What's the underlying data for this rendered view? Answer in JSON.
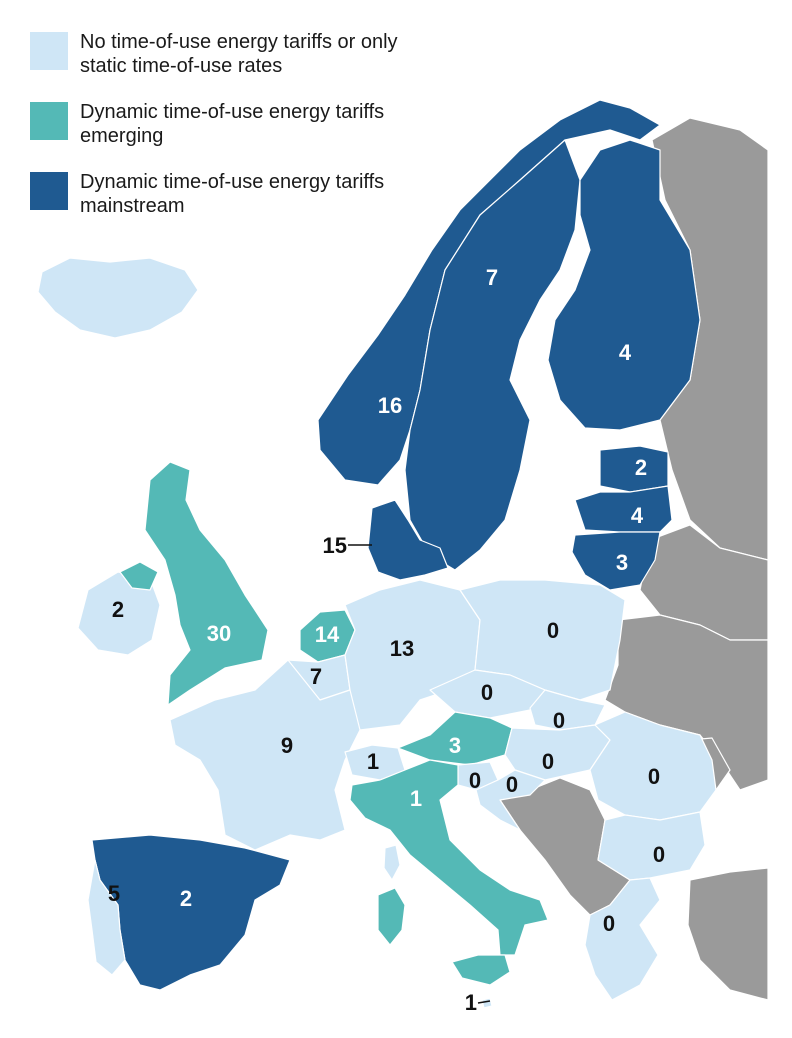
{
  "colors": {
    "none": "#cfe6f6",
    "emerging": "#54b9b6",
    "mainstream": "#1f5a91",
    "nodata": "#9a9a9a",
    "sea": "#ffffff",
    "border": "#ffffff"
  },
  "legend": [
    {
      "category": "none",
      "label": "No time-of-use energy tariffs or only static time-of-use rates"
    },
    {
      "category": "emerging",
      "label": "Dynamic time-of-use energy tariffs emerging"
    },
    {
      "category": "mainstream",
      "label": "Dynamic time-of-use energy tariffs mainstream"
    }
  ],
  "regions": [
    {
      "id": "iceland",
      "category": "none"
    },
    {
      "id": "norway",
      "category": "mainstream",
      "value": "16"
    },
    {
      "id": "sweden",
      "category": "mainstream",
      "value": "7"
    },
    {
      "id": "finland",
      "category": "mainstream",
      "value": "4"
    },
    {
      "id": "estonia",
      "category": "mainstream",
      "value": "2"
    },
    {
      "id": "latvia",
      "category": "mainstream",
      "value": "4"
    },
    {
      "id": "lithuania",
      "category": "mainstream",
      "value": "3"
    },
    {
      "id": "denmark",
      "category": "mainstream",
      "value": "15"
    },
    {
      "id": "ireland",
      "category": "none",
      "value": "2"
    },
    {
      "id": "northern-ireland",
      "category": "emerging"
    },
    {
      "id": "great-britain",
      "category": "emerging",
      "value": "30"
    },
    {
      "id": "netherlands",
      "category": "emerging",
      "value": "14"
    },
    {
      "id": "belgium",
      "category": "none",
      "value": "7"
    },
    {
      "id": "germany",
      "category": "none",
      "value": "13"
    },
    {
      "id": "poland",
      "category": "none",
      "value": "0"
    },
    {
      "id": "czechia",
      "category": "none",
      "value": "0"
    },
    {
      "id": "slovakia",
      "category": "none",
      "value": "0"
    },
    {
      "id": "france",
      "category": "none",
      "value": "9"
    },
    {
      "id": "switzerland",
      "category": "none",
      "value": "1"
    },
    {
      "id": "austria",
      "category": "emerging",
      "value": "3"
    },
    {
      "id": "hungary",
      "category": "none",
      "value": "0"
    },
    {
      "id": "slovenia",
      "category": "none",
      "value": "0"
    },
    {
      "id": "croatia",
      "category": "none",
      "value": "0"
    },
    {
      "id": "romania",
      "category": "none",
      "value": "0"
    },
    {
      "id": "bulgaria",
      "category": "none",
      "value": "0"
    },
    {
      "id": "greece",
      "category": "none",
      "value": "0"
    },
    {
      "id": "italy",
      "category": "emerging",
      "value": "1"
    },
    {
      "id": "sardinia",
      "category": "emerging"
    },
    {
      "id": "sicily",
      "category": "emerging"
    },
    {
      "id": "corsica",
      "category": "none"
    },
    {
      "id": "malta",
      "category": "none",
      "value": "1"
    },
    {
      "id": "spain",
      "category": "mainstream",
      "value": "2"
    },
    {
      "id": "portugal",
      "category": "none",
      "value": "5"
    },
    {
      "id": "russia",
      "category": "nodata"
    },
    {
      "id": "belarus",
      "category": "nodata"
    },
    {
      "id": "ukraine",
      "category": "nodata"
    },
    {
      "id": "moldova",
      "category": "nodata"
    },
    {
      "id": "balkans-west",
      "category": "nodata"
    },
    {
      "id": "turkey",
      "category": "nodata"
    }
  ]
}
